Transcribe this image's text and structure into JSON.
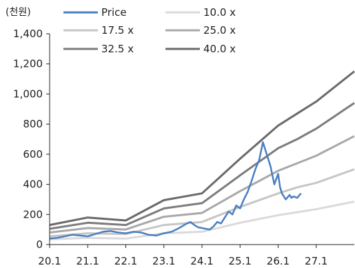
{
  "chart_data": {
    "type": "line",
    "unit_label": "(천원)",
    "ylim": [
      0,
      1400
    ],
    "yticks": [
      0,
      200,
      400,
      600,
      800,
      1000,
      1200,
      1400
    ],
    "ytick_labels": [
      "0",
      "200",
      "400",
      "600",
      "800",
      "1,000",
      "1,200",
      "1,400"
    ],
    "xlim": [
      2020.0,
      2028.0
    ],
    "xtick_values": [
      2020.0,
      2021.0,
      2022.0,
      2023.0,
      2024.0,
      2025.0,
      2026.0,
      2027.0
    ],
    "xtick_labels": [
      "20.1",
      "21.1",
      "22.1",
      "23.1",
      "24.1",
      "25.1",
      "26.1",
      "27.1"
    ],
    "grid": false,
    "legend_position": "top",
    "series": [
      {
        "name": "Price",
        "color": "#4a7fbf",
        "x": [
          2020.0,
          2020.2,
          2020.4,
          2020.6,
          2020.8,
          2021.0,
          2021.2,
          2021.4,
          2021.6,
          2021.8,
          2022.0,
          2022.2,
          2022.4,
          2022.6,
          2022.8,
          2023.0,
          2023.2,
          2023.4,
          2023.6,
          2023.7,
          2023.8,
          2023.9,
          2024.0,
          2024.1,
          2024.2,
          2024.3,
          2024.4,
          2024.5,
          2024.6,
          2024.7,
          2024.8,
          2024.9,
          2025.0,
          2025.1,
          2025.2,
          2025.3,
          2025.4,
          2025.5,
          2025.6,
          2025.7,
          2025.8,
          2025.9,
          2026.0,
          2026.05,
          2026.1,
          2026.2,
          2026.3,
          2026.35,
          2026.4,
          2026.5,
          2026.6
        ],
        "values": [
          40,
          45,
          55,
          65,
          60,
          55,
          70,
          85,
          90,
          80,
          75,
          85,
          80,
          65,
          60,
          75,
          85,
          110,
          140,
          150,
          130,
          115,
          110,
          105,
          100,
          120,
          150,
          140,
          180,
          220,
          200,
          260,
          240,
          300,
          350,
          420,
          500,
          560,
          680,
          600,
          520,
          400,
          470,
          380,
          340,
          300,
          330,
          310,
          320,
          310,
          340
        ]
      },
      {
        "name": "10.0 x",
        "color": "#dadada",
        "x": [
          2020.0,
          2021.0,
          2022.0,
          2023.0,
          2024.0,
          2025.0,
          2026.0,
          2026.5,
          2027.0,
          2028.0
        ],
        "values": [
          35,
          45,
          40,
          75,
          85,
          145,
          195,
          215,
          235,
          285
        ]
      },
      {
        "name": "17.5 x",
        "color": "#c6c6c6",
        "x": [
          2020.0,
          2021.0,
          2022.0,
          2023.0,
          2024.0,
          2025.0,
          2026.0,
          2026.5,
          2027.0,
          2028.0
        ],
        "values": [
          55,
          75,
          70,
          130,
          150,
          250,
          340,
          380,
          410,
          500
        ]
      },
      {
        "name": "25.0 x",
        "color": "#a8a8a8",
        "x": [
          2020.0,
          2021.0,
          2022.0,
          2023.0,
          2024.0,
          2025.0,
          2026.0,
          2026.5,
          2027.0,
          2028.0
        ],
        "values": [
          80,
          110,
          100,
          185,
          210,
          355,
          490,
          540,
          590,
          720
        ]
      },
      {
        "name": "32.5 x",
        "color": "#7c7c7c",
        "x": [
          2020.0,
          2021.0,
          2022.0,
          2023.0,
          2024.0,
          2025.0,
          2026.0,
          2026.5,
          2027.0,
          2028.0
        ],
        "values": [
          105,
          145,
          130,
          240,
          275,
          460,
          640,
          700,
          770,
          940
        ]
      },
      {
        "name": "40.0 x",
        "color": "#6a6a6a",
        "x": [
          2020.0,
          2021.0,
          2022.0,
          2023.0,
          2024.0,
          2025.0,
          2026.0,
          2026.5,
          2027.0,
          2028.0
        ],
        "values": [
          130,
          180,
          160,
          295,
          340,
          570,
          790,
          870,
          950,
          1150
        ]
      }
    ]
  }
}
